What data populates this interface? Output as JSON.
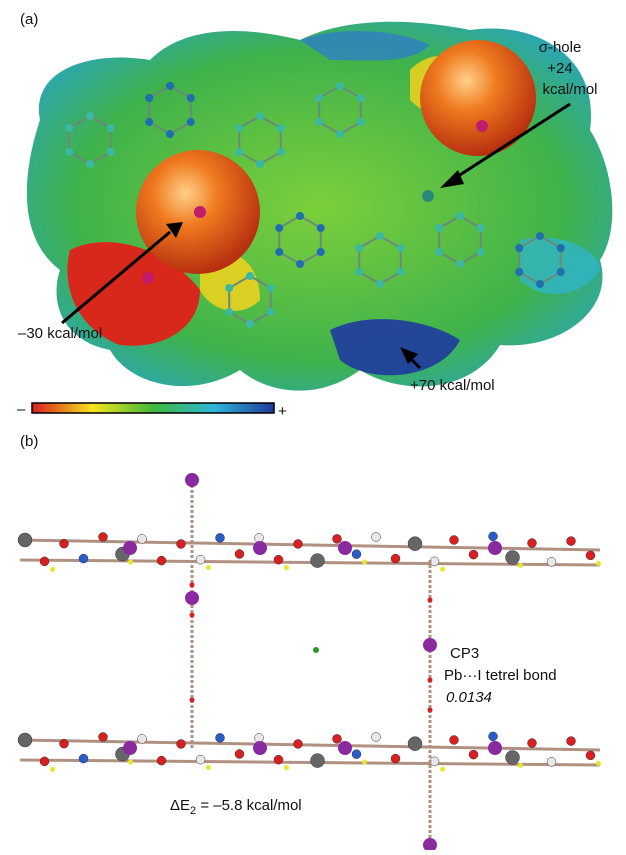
{
  "panel_a": {
    "label": "(a)",
    "sigma_hole": {
      "title": "σ-hole",
      "value": "+24",
      "unit": "kcal/mol"
    },
    "negative_label": "–30 kcal/mol",
    "positive_label": "+70 kcal/mol",
    "colorbar": {
      "min_label": "–",
      "max_label": "+"
    }
  },
  "panel_b": {
    "label": "(b)",
    "cp_label": "CP3",
    "bond_label": "Pb···I tetrel bond",
    "density": "0.0134",
    "energy": {
      "symbol": "ΔE",
      "subscript": "2",
      "rest": " = –5.8 kcal/mol"
    }
  }
}
